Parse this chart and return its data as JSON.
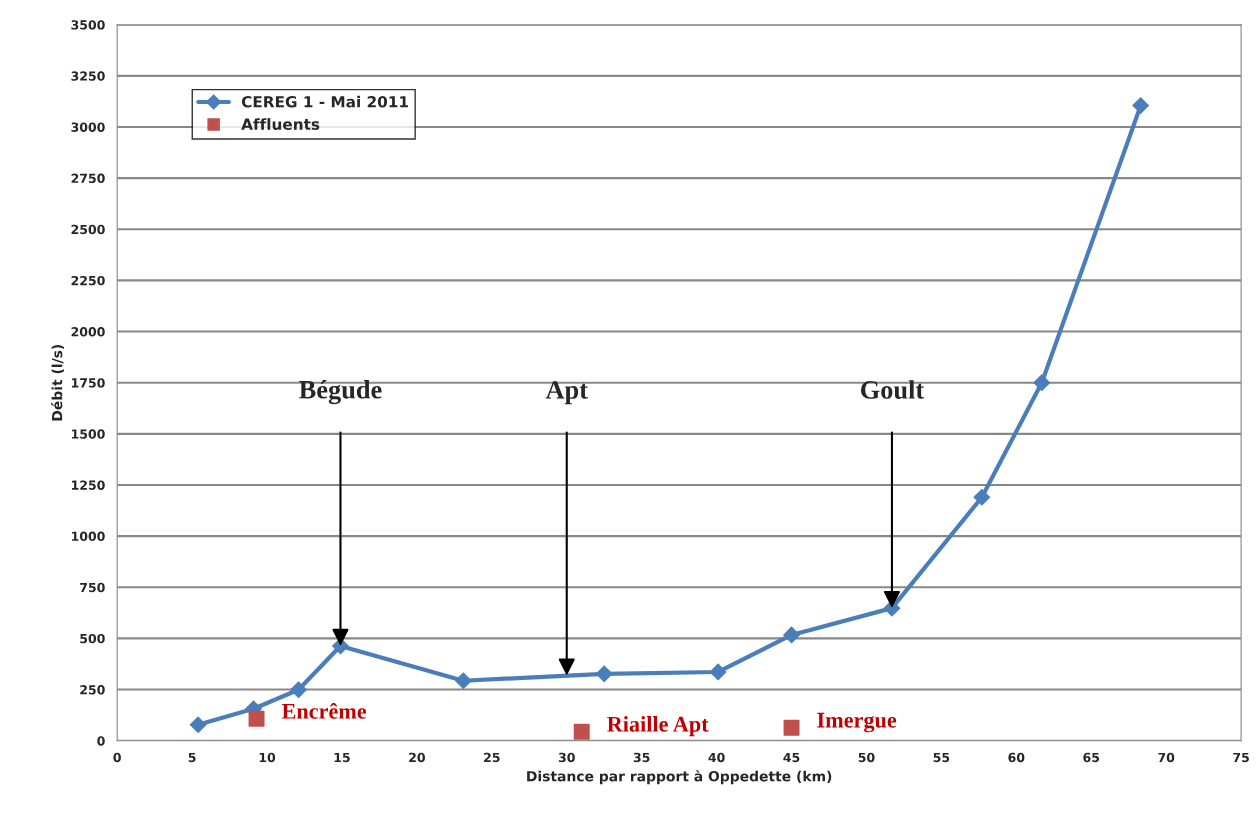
{
  "chart_data": {
    "type": "line",
    "xlabel": "Distance par rapport à Oppedette (km)",
    "ylabel": "Débit (l/s)",
    "series": [
      {
        "name": "CEREG 1 - Mai 2011",
        "color": "#4a7ebb",
        "marker": "diamond",
        "x": [
          5.4,
          9.1,
          12.1,
          14.9,
          23.1,
          32.5,
          40.1,
          45.0,
          51.7,
          57.7,
          61.7,
          68.3
        ],
        "values": [
          78,
          156,
          249,
          463,
          293,
          327,
          336,
          517,
          648,
          1190,
          1750,
          3105
        ]
      },
      {
        "name": "Affluents",
        "type": "scatter",
        "color": "#c0504d",
        "marker": "square",
        "x": [
          9.3,
          31.0,
          45.0
        ],
        "values": [
          107,
          44,
          63
        ],
        "value_labels": [
          "Encrême",
          "Riaille Apt",
          "Imergue"
        ]
      }
    ],
    "annotations": [
      {
        "text": "Bégude",
        "x": 14.9,
        "y": 463
      },
      {
        "text": "Apt",
        "x": 30.0,
        "y": 318
      },
      {
        "text": "Goult",
        "x": 51.7,
        "y": 648
      }
    ],
    "xlim": [
      0,
      75
    ],
    "xticks": [
      0,
      5,
      10,
      15,
      20,
      25,
      30,
      35,
      40,
      45,
      50,
      55,
      60,
      65,
      70,
      75
    ],
    "ylim": [
      0,
      3500
    ],
    "yticks": [
      0,
      250,
      500,
      750,
      1000,
      1250,
      1500,
      1750,
      2000,
      2250,
      2500,
      2750,
      3000,
      3250,
      3500
    ],
    "grid": "y",
    "legend": "top left"
  }
}
